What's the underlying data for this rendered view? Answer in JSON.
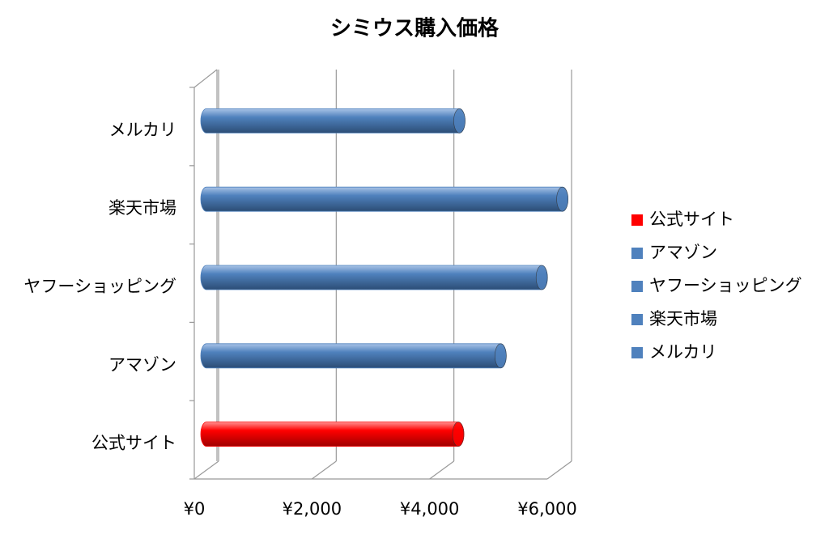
{
  "chart_data": {
    "type": "bar3d-horizontal",
    "title": "シミウス購入価格",
    "categories": [
      "公式サイト",
      "アマゾン",
      "ヤフーショッピング",
      "楽天市場",
      "メルカリ"
    ],
    "values": [
      4280,
      5000,
      5700,
      6050,
      4300
    ],
    "colors": [
      "#ff0000",
      "#4f81bd",
      "#4f81bd",
      "#4f81bd",
      "#4f81bd"
    ],
    "xlim": [
      0,
      6000
    ],
    "xticks": [
      {
        "value": 0,
        "label": "¥0"
      },
      {
        "value": 2000,
        "label": "¥2,000"
      },
      {
        "value": 4000,
        "label": "¥4,000"
      },
      {
        "value": 6000,
        "label": "¥6,000"
      }
    ],
    "grid": true,
    "legend": "right"
  }
}
